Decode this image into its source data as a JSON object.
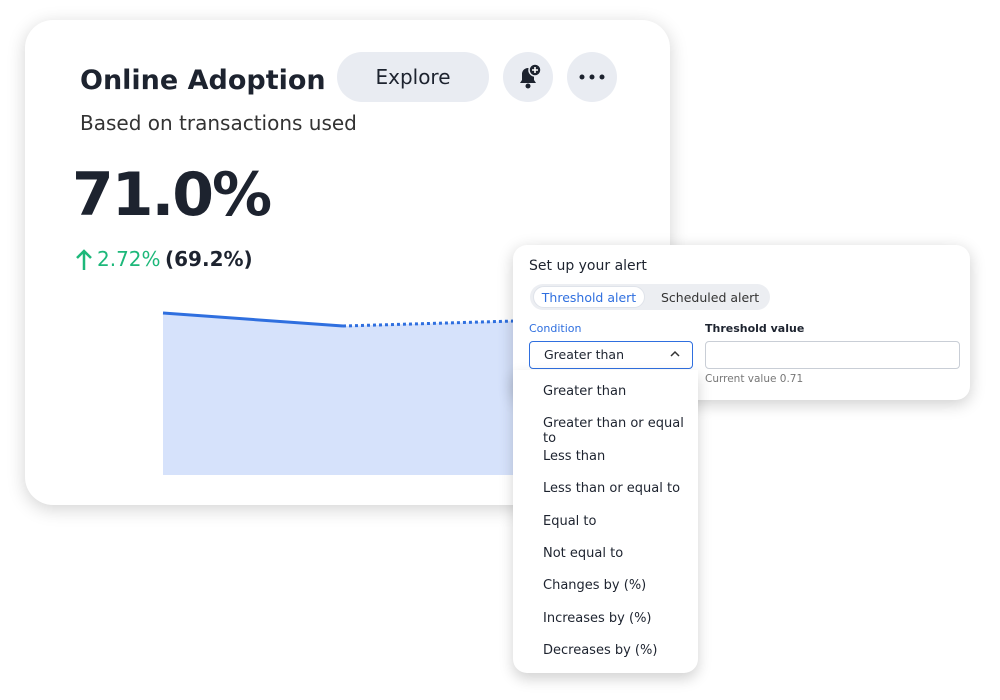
{
  "card": {
    "title": "Online Adoption",
    "subtitle": "Based on transactions used",
    "value": "71.0%",
    "change": "2.72%",
    "comparison": "(69.2%)",
    "explore": "Explore"
  },
  "alert": {
    "title": "Set up your alert",
    "tabs": [
      "Threshold alert",
      "Scheduled alert"
    ],
    "condition_label": "Condition",
    "threshold_label": "Threshold value",
    "selected": "Greater than",
    "current_value": "Current value 0.71",
    "options": [
      "Greater than",
      "Greater than or equal to",
      "Less than",
      "Less than or equal to",
      "Equal to",
      "Not equal to",
      "Changes by (%)",
      "Increases by (%)",
      "Decreases by (%)"
    ]
  }
}
